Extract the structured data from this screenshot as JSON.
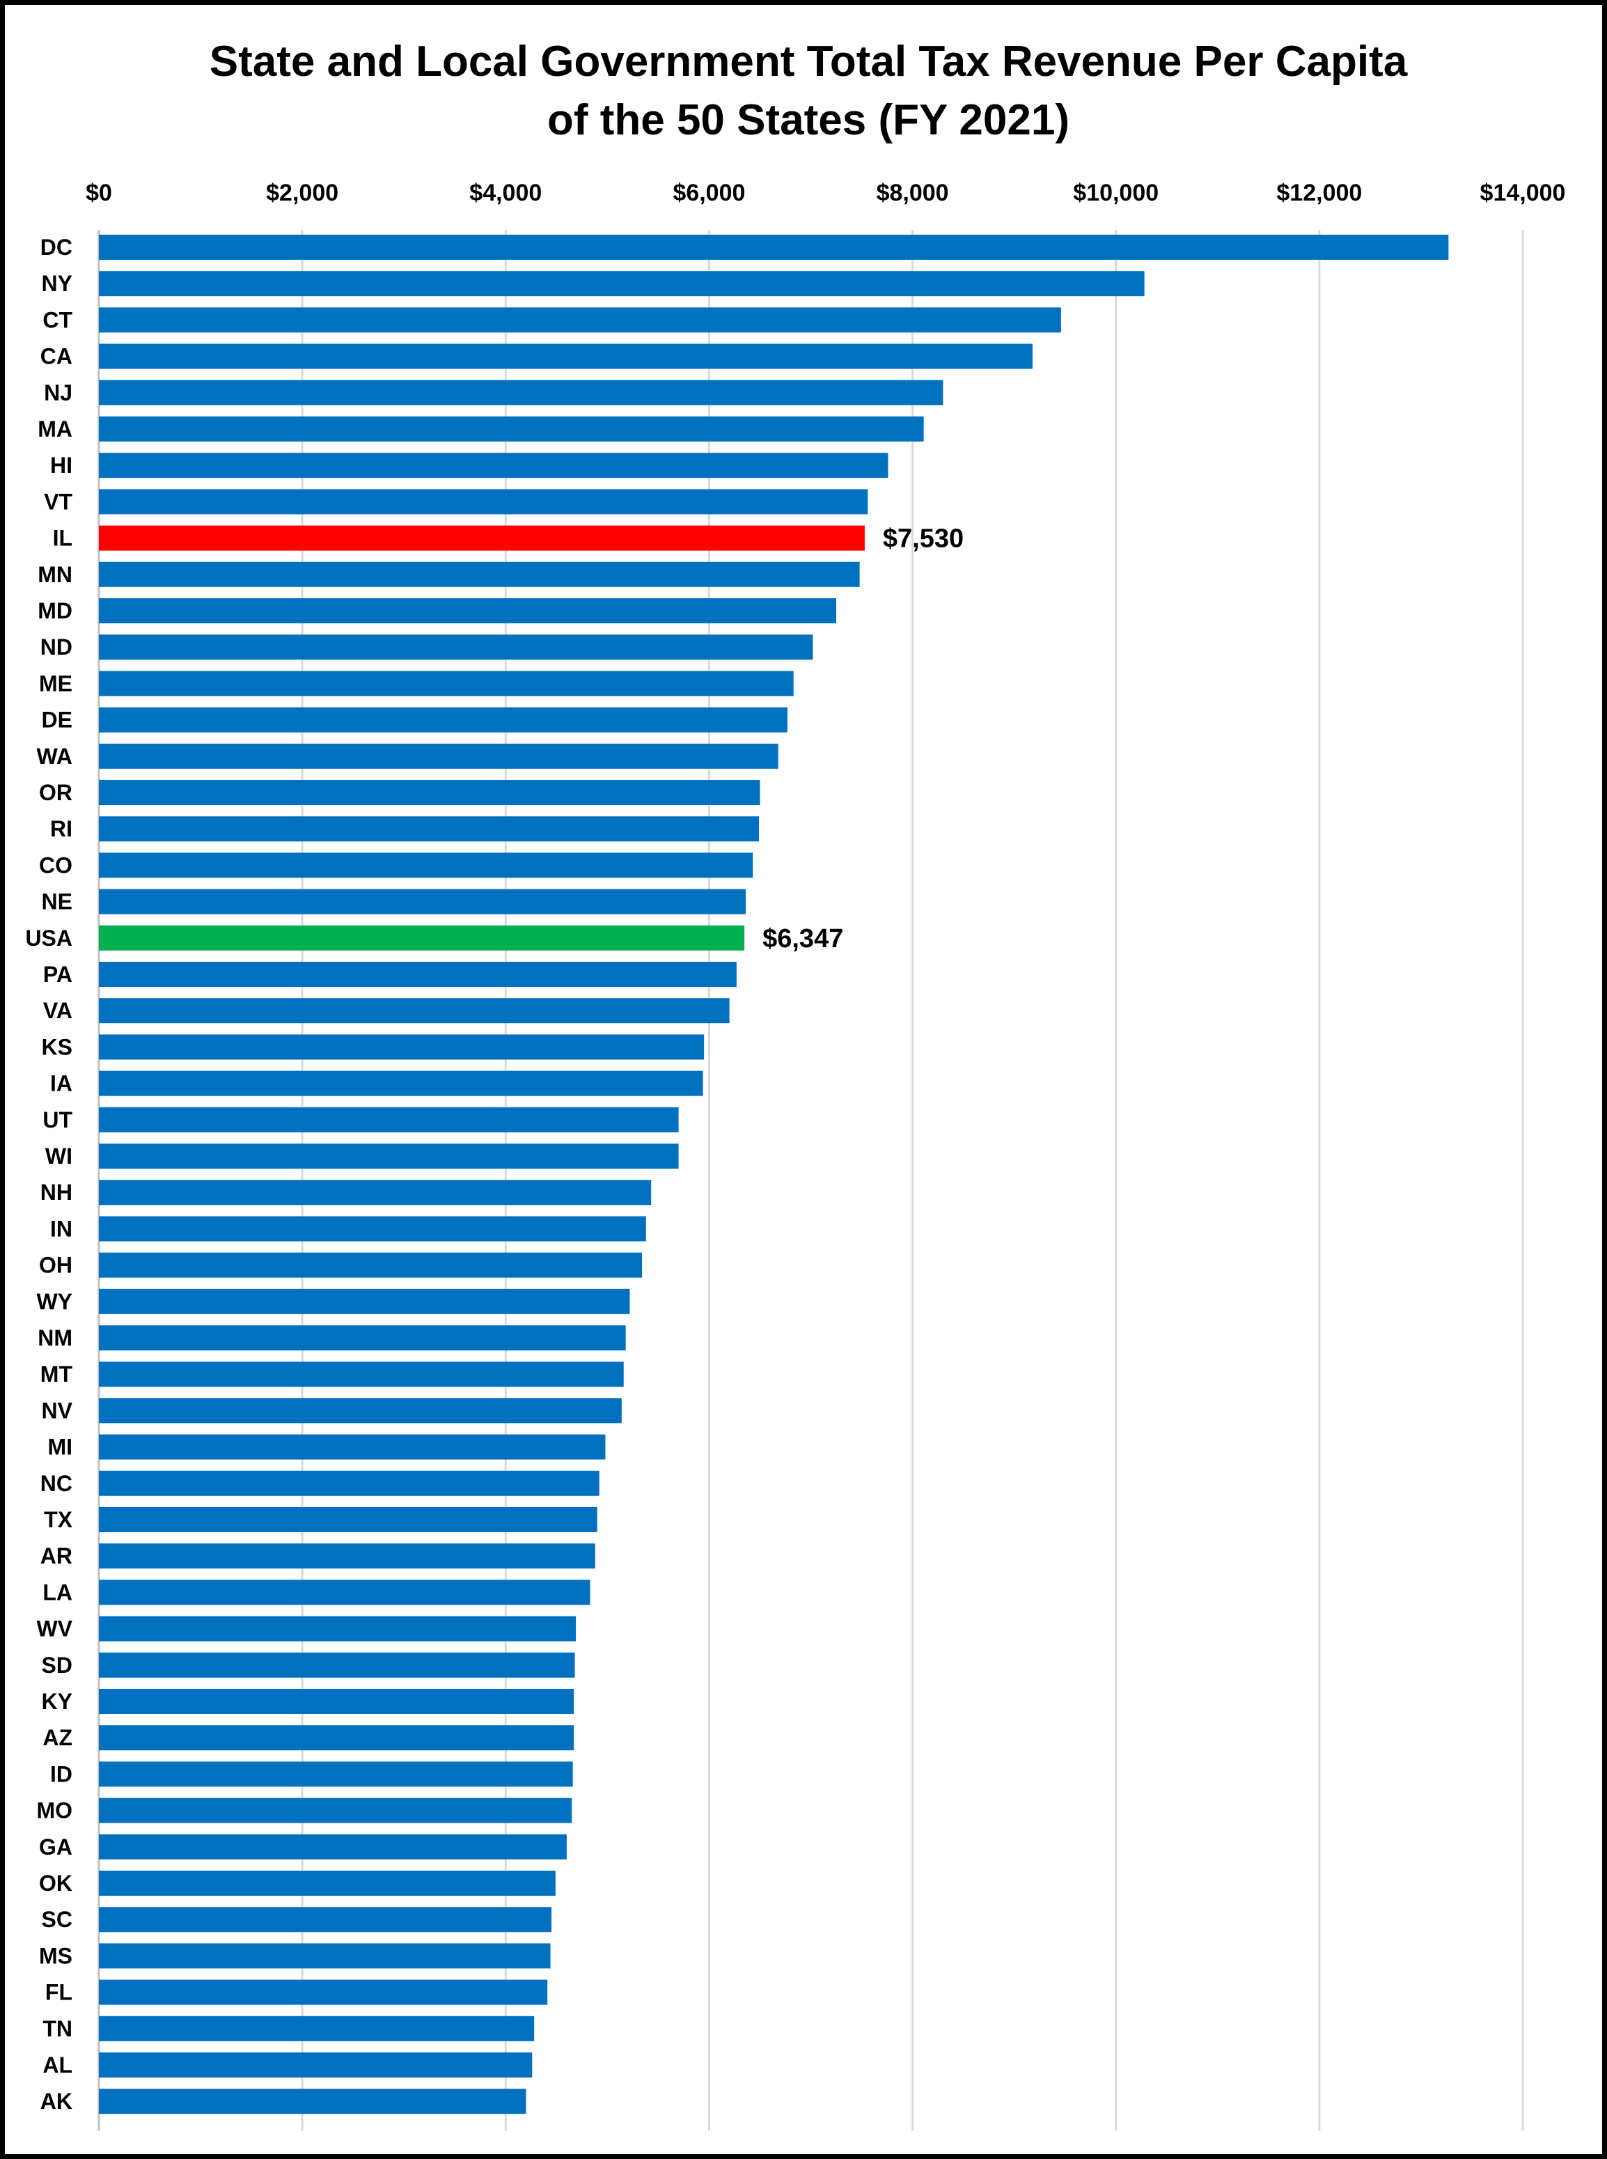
{
  "chart_data": {
    "type": "bar",
    "orientation": "horizontal",
    "title_lines": [
      "State and Local Government Total Tax Revenue Per Capita",
      "of the 50 States (FY 2021)"
    ],
    "xlim": [
      0,
      14000
    ],
    "x_ticks": [
      0,
      2000,
      4000,
      6000,
      8000,
      10000,
      12000,
      14000
    ],
    "x_tick_labels": [
      "$0",
      "$2,000",
      "$4,000",
      "$6,000",
      "$8,000",
      "$10,000",
      "$12,000",
      "$14,000"
    ],
    "x_axis_position": "top",
    "grid": true,
    "colors": {
      "default": "#0070C0",
      "highlight_il": "#FF0000",
      "highlight_usa": "#00B050",
      "grid": "#D9D9D9"
    },
    "categories": [
      "DC",
      "NY",
      "CT",
      "CA",
      "NJ",
      "MA",
      "HI",
      "VT",
      "IL",
      "MN",
      "MD",
      "ND",
      "ME",
      "DE",
      "WA",
      "OR",
      "RI",
      "CO",
      "NE",
      "USA",
      "PA",
      "VA",
      "KS",
      "IA",
      "UT",
      "WI",
      "NH",
      "IN",
      "OH",
      "WY",
      "NM",
      "MT",
      "NV",
      "MI",
      "NC",
      "TX",
      "AR",
      "LA",
      "WV",
      "SD",
      "KY",
      "AZ",
      "ID",
      "MO",
      "GA",
      "OK",
      "SC",
      "MS",
      "FL",
      "TN",
      "AL",
      "AK"
    ],
    "values": [
      13270,
      10280,
      9460,
      9180,
      8300,
      8110,
      7760,
      7560,
      7530,
      7480,
      7250,
      7020,
      6830,
      6770,
      6680,
      6500,
      6490,
      6430,
      6360,
      6347,
      6270,
      6200,
      5950,
      5940,
      5700,
      5700,
      5430,
      5380,
      5340,
      5220,
      5180,
      5160,
      5140,
      4980,
      4920,
      4900,
      4880,
      4830,
      4690,
      4680,
      4670,
      4670,
      4660,
      4650,
      4600,
      4490,
      4450,
      4440,
      4410,
      4280,
      4260,
      4200
    ],
    "highlights": {
      "IL": "highlight_il",
      "USA": "highlight_usa"
    },
    "data_labels": [
      {
        "category": "IL",
        "text": "$7,530"
      },
      {
        "category": "USA",
        "text": "$6,347"
      }
    ]
  }
}
